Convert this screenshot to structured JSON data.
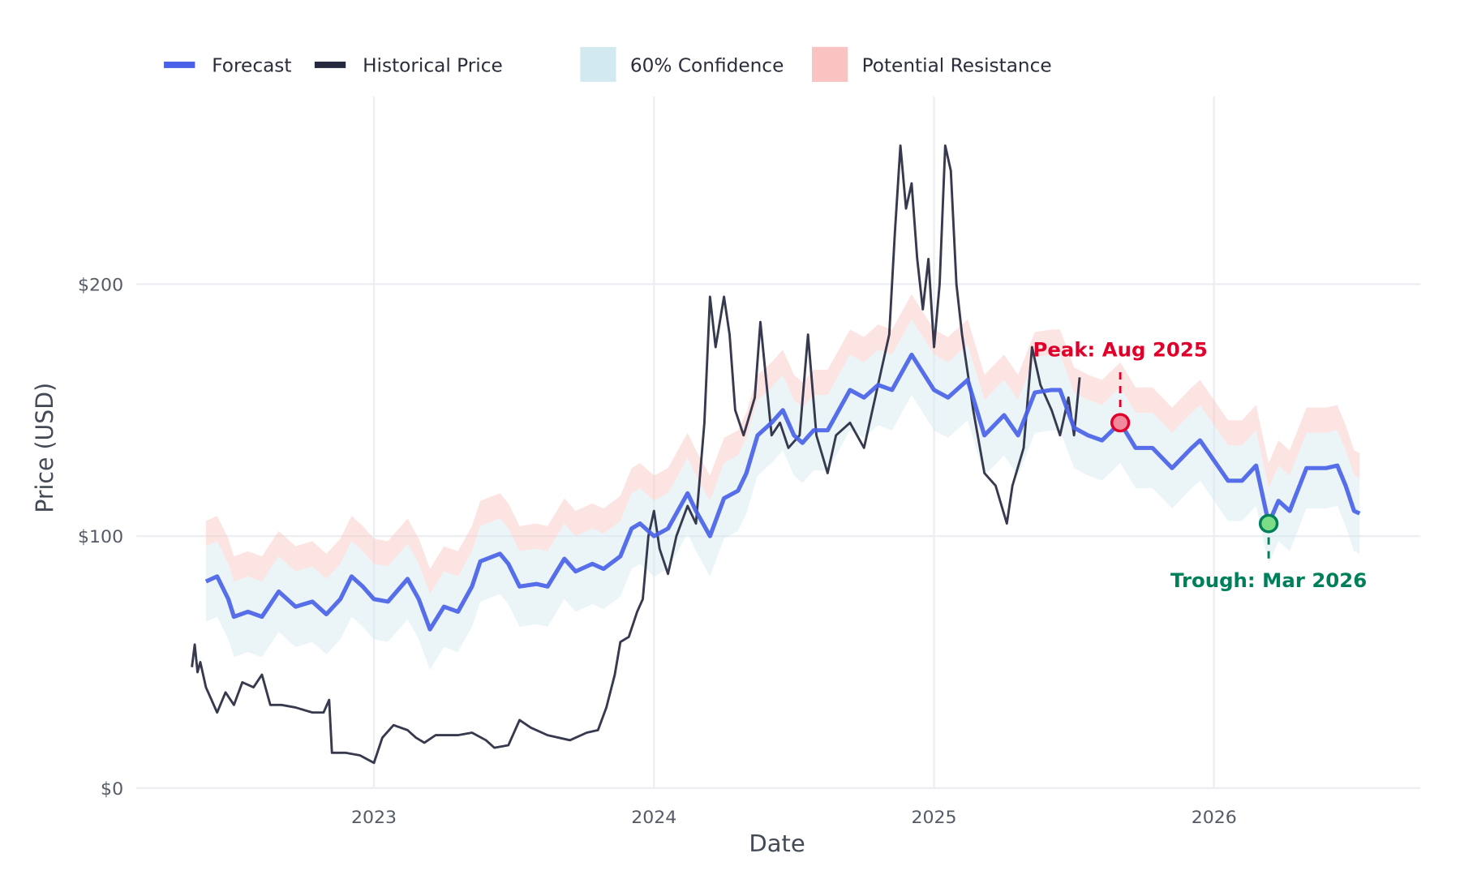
{
  "chart_data": {
    "type": "line",
    "title": "",
    "xlabel": "Date",
    "ylabel": "Price (USD)",
    "xlim": [
      2022.2,
      2026.73
    ],
    "ylim": [
      -5,
      270
    ],
    "grid": true,
    "legend_placement": "top-left",
    "x_ticks": [
      {
        "value": 2023,
        "label": "2023"
      },
      {
        "value": 2024,
        "label": "2024"
      },
      {
        "value": 2025,
        "label": "2025"
      },
      {
        "value": 2026,
        "label": "2026"
      }
    ],
    "y_ticks": [
      {
        "value": 0,
        "label": "$0"
      },
      {
        "value": 100,
        "label": "$100"
      },
      {
        "value": 200,
        "label": "$200"
      }
    ],
    "legend": [
      {
        "label": "Forecast",
        "type": "line",
        "color": "#4a62e8"
      },
      {
        "label": "Historical Price",
        "type": "line",
        "color": "#262940"
      },
      {
        "label": "60% Confidence",
        "type": "area",
        "color": "#d3e9f0"
      },
      {
        "label": "Potential Resistance",
        "type": "area",
        "color": "#f8c3c1"
      }
    ],
    "series": [
      {
        "name": "Historical Price",
        "color": "#262940",
        "x": [
          2022.35,
          2022.36,
          2022.37,
          2022.38,
          2022.4,
          2022.42,
          2022.44,
          2022.47,
          2022.5,
          2022.53,
          2022.57,
          2022.6,
          2022.63,
          2022.67,
          2022.72,
          2022.78,
          2022.82,
          2022.84,
          2022.85,
          2022.9,
          2022.95,
          2023.0,
          2023.03,
          2023.07,
          2023.12,
          2023.15,
          2023.18,
          2023.22,
          2023.3,
          2023.35,
          2023.4,
          2023.43,
          2023.48,
          2023.52,
          2023.56,
          2023.62,
          2023.7,
          2023.76,
          2023.8,
          2023.83,
          2023.86,
          2023.88,
          2023.91,
          2023.94,
          2023.96,
          2023.98,
          2024.0,
          2024.02,
          2024.05,
          2024.08,
          2024.12,
          2024.15,
          2024.18,
          2024.2,
          2024.22,
          2024.25,
          2024.27,
          2024.29,
          2024.32,
          2024.36,
          2024.38,
          2024.42,
          2024.45,
          2024.48,
          2024.52,
          2024.55,
          2024.58,
          2024.62,
          2024.65,
          2024.7,
          2024.75,
          2024.78,
          2024.82,
          2024.84,
          2024.86,
          2024.88,
          2024.9,
          2024.92,
          2024.94,
          2024.96,
          2024.98,
          2025.0,
          2025.02,
          2025.04,
          2025.06,
          2025.08,
          2025.1,
          2025.14,
          2025.18,
          2025.22,
          2025.26,
          2025.28,
          2025.32,
          2025.35,
          2025.38,
          2025.42,
          2025.45,
          2025.48,
          2025.5,
          2025.52
        ],
        "y": [
          48,
          57,
          46,
          50,
          40,
          35,
          30,
          38,
          33,
          42,
          40,
          45,
          33,
          33,
          32,
          30,
          30,
          35,
          14,
          14,
          13,
          10,
          20,
          25,
          23,
          20,
          18,
          21,
          21,
          22,
          19,
          16,
          17,
          27,
          24,
          21,
          19,
          22,
          23,
          32,
          45,
          58,
          60,
          70,
          75,
          100,
          110,
          95,
          85,
          100,
          112,
          105,
          145,
          195,
          175,
          195,
          180,
          150,
          140,
          155,
          185,
          140,
          145,
          135,
          140,
          180,
          140,
          125,
          140,
          145,
          135,
          150,
          170,
          180,
          220,
          255,
          230,
          240,
          210,
          190,
          210,
          175,
          200,
          255,
          245,
          200,
          180,
          150,
          125,
          120,
          105,
          120,
          135,
          175,
          160,
          150,
          140,
          155,
          140,
          163
        ]
      },
      {
        "name": "Forecast",
        "color": "#4a62e8",
        "x": [
          2022.4,
          2022.44,
          2022.48,
          2022.5,
          2022.55,
          2022.6,
          2022.66,
          2022.72,
          2022.78,
          2022.83,
          2022.88,
          2022.92,
          2022.96,
          2023.0,
          2023.05,
          2023.12,
          2023.16,
          2023.2,
          2023.25,
          2023.3,
          2023.35,
          2023.38,
          2023.45,
          2023.48,
          2023.52,
          2023.58,
          2023.62,
          2023.68,
          2023.72,
          2023.78,
          2023.82,
          2023.88,
          2023.92,
          2023.95,
          2024.0,
          2024.05,
          2024.12,
          2024.15,
          2024.2,
          2024.25,
          2024.3,
          2024.33,
          2024.37,
          2024.42,
          2024.46,
          2024.5,
          2024.53,
          2024.57,
          2024.62,
          2024.66,
          2024.7,
          2024.75,
          2024.8,
          2024.85,
          2024.92,
          2024.96,
          2025.0,
          2025.05,
          2025.12,
          2025.18,
          2025.25,
          2025.3,
          2025.36,
          2025.42,
          2025.45,
          2025.5,
          2025.55,
          2025.6,
          2025.665,
          2025.72,
          2025.78,
          2025.85,
          2025.92,
          2025.95,
          2026.0,
          2026.05,
          2026.1,
          2026.15,
          2026.195,
          2026.23,
          2026.27,
          2026.33,
          2026.4,
          2026.44,
          2026.47,
          2026.5,
          2026.52
        ],
        "y": [
          82,
          84,
          75,
          68,
          70,
          68,
          78,
          72,
          74,
          69,
          75,
          84,
          80,
          75,
          74,
          83,
          75,
          63,
          72,
          70,
          80,
          90,
          93,
          89,
          80,
          81,
          80,
          91,
          86,
          89,
          87,
          92,
          103,
          105,
          100,
          103,
          117,
          110,
          100,
          115,
          118,
          125,
          140,
          145,
          150,
          140,
          137,
          142,
          142,
          150,
          158,
          155,
          160,
          158,
          172,
          165,
          158,
          155,
          162,
          140,
          148,
          140,
          157,
          158,
          158,
          143,
          140,
          138,
          145,
          135,
          135,
          127,
          135,
          138,
          130,
          122,
          122,
          128,
          105,
          114,
          110,
          127,
          127,
          128,
          120,
          110,
          109
        ]
      }
    ],
    "bands": {
      "confidence_lower_offset": -16,
      "confidence_upper_offset": 14,
      "resistance_upper_offset": 24
    },
    "annotations": [
      {
        "label": "Peak: Aug 2025",
        "x": 2025.665,
        "y": 145,
        "color": "#e0002a",
        "fill": "#f08a9c"
      },
      {
        "label": "Trough: Mar 2026",
        "x": 2026.195,
        "y": 105,
        "color": "#00805a",
        "fill": "#7ddc86"
      }
    ]
  }
}
